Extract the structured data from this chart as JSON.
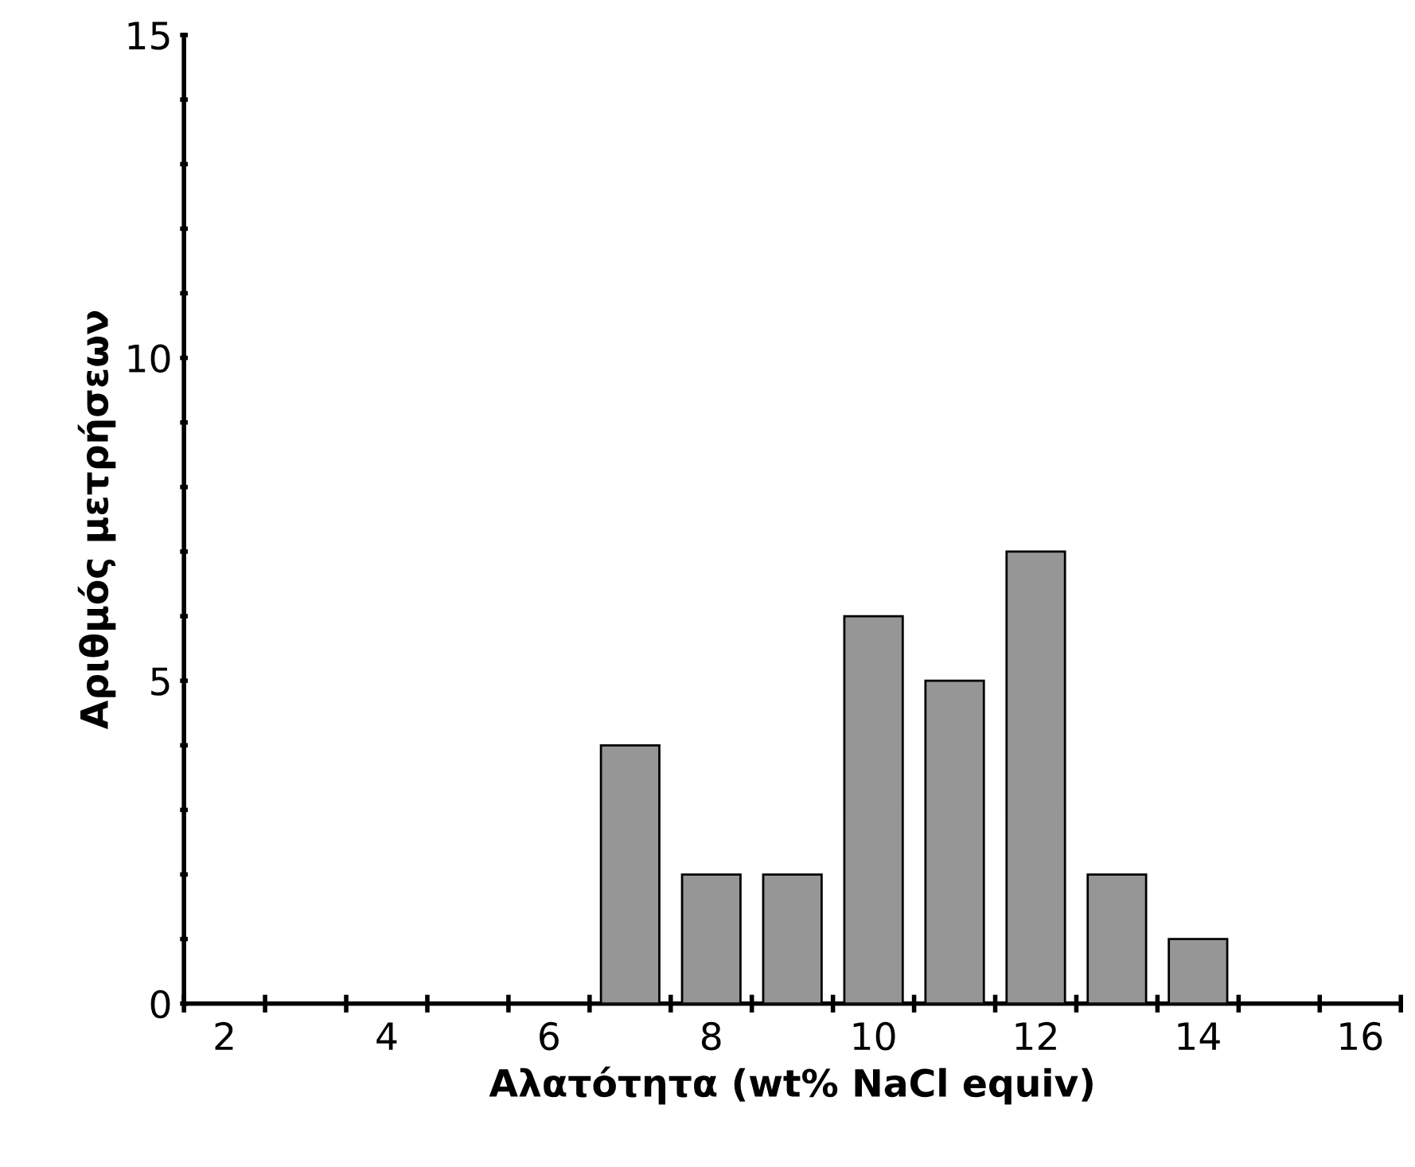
{
  "chart_data": {
    "type": "bar",
    "xlabel": "Αλατότητα (wt% NaCl equiv)",
    "ylabel": "Αριθμός μετρήσεων",
    "categories": [
      "2",
      null,
      "4",
      null,
      "6",
      null,
      "8",
      null,
      "10",
      null,
      "12",
      null,
      "14",
      null,
      "16"
    ],
    "values": [
      0,
      0,
      0,
      0,
      0,
      4,
      2,
      2,
      6,
      5,
      7,
      2,
      1,
      0,
      0
    ],
    "color": "#969696",
    "ylim": [
      0,
      15
    ],
    "yticks": [
      0,
      {
        "value": 1,
        "label": null
      },
      {
        "value": 2,
        "label": null
      },
      {
        "value": 3,
        "label": null
      },
      {
        "value": 4,
        "label": null
      },
      5,
      {
        "value": 6,
        "label": null
      },
      {
        "value": 7,
        "label": null
      },
      {
        "value": 8,
        "label": null
      },
      {
        "value": 9,
        "label": null
      },
      10,
      {
        "value": 11,
        "label": null
      },
      {
        "value": 12,
        "label": null
      },
      {
        "value": 13,
        "label": null
      },
      {
        "value": 14,
        "label": null
      },
      15
    ],
    "grid": false,
    "legend": false
  }
}
